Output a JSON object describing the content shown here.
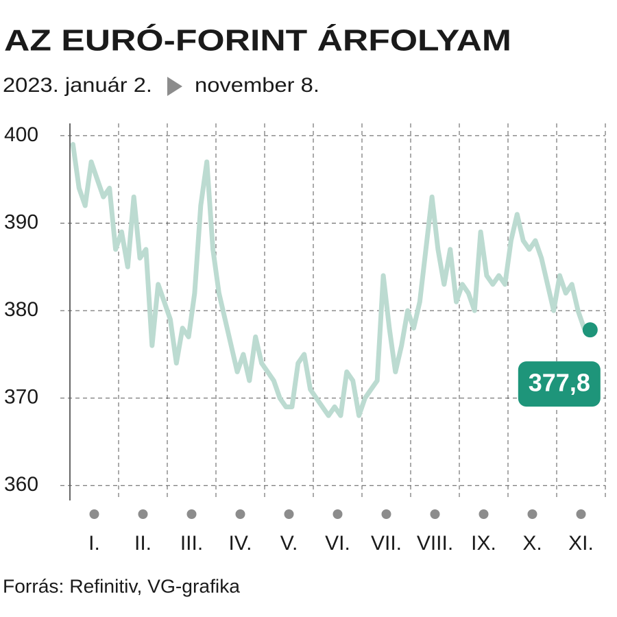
{
  "chart_data": {
    "type": "line",
    "title": "AZ EURÓ-FORINT ÁRFOLYAM",
    "subtitle_start": "2023. január 2.",
    "subtitle_end": "november 8.",
    "source": "Forrás: Refinitiv, VG-grafika",
    "categories": [
      null,
      null,
      null,
      null,
      "I.",
      null,
      null,
      null,
      null,
      null,
      null,
      null,
      "II.",
      null,
      null,
      null,
      null,
      null,
      null,
      null,
      "III.",
      null,
      null,
      null,
      null,
      null,
      null,
      null,
      "IV.",
      null,
      null,
      null,
      null,
      null,
      null,
      null,
      "V.",
      null,
      null,
      null,
      null,
      null,
      null,
      null,
      "VI.",
      null,
      null,
      null,
      null,
      null,
      null,
      null,
      "VII.",
      null,
      null,
      null,
      null,
      null,
      null,
      null,
      "VIII.",
      null,
      null,
      null,
      null,
      null,
      null,
      null,
      "IX.",
      null,
      null,
      null,
      null,
      null,
      null,
      null,
      "X.",
      null,
      null,
      null,
      null,
      null,
      null,
      null,
      "XI.",
      null
    ],
    "series": [
      {
        "color": "#bcdbd1",
        "end_color": "#1e957a",
        "values": [
          399,
          394,
          392,
          397,
          395,
          393,
          394,
          387,
          389,
          385,
          393,
          386,
          387,
          376,
          383,
          381,
          379,
          374,
          378,
          377,
          382,
          392,
          397,
          387,
          382,
          379,
          376,
          373,
          375,
          372,
          377,
          374,
          373,
          372,
          370,
          369,
          369,
          374,
          375,
          371,
          370,
          369,
          368,
          369,
          368,
          373,
          372,
          368,
          370,
          371,
          372,
          384,
          378,
          373,
          376,
          380,
          378,
          381,
          387,
          393,
          387,
          383,
          387,
          381,
          383,
          382,
          380,
          389,
          384,
          383,
          384,
          383,
          388,
          391,
          388,
          387,
          388,
          386,
          383,
          380,
          384,
          382,
          383,
          380,
          378,
          377.8
        ],
        "value_labels": [
          null,
          null,
          null,
          null,
          null,
          null,
          null,
          null,
          null,
          null,
          null,
          null,
          null,
          null,
          null,
          null,
          null,
          null,
          null,
          null,
          null,
          null,
          null,
          null,
          null,
          null,
          null,
          null,
          null,
          null,
          null,
          null,
          null,
          null,
          null,
          null,
          null,
          null,
          null,
          null,
          null,
          null,
          null,
          null,
          null,
          null,
          null,
          null,
          null,
          null,
          null,
          null,
          null,
          null,
          null,
          null,
          null,
          null,
          null,
          null,
          null,
          null,
          null,
          null,
          null,
          null,
          null,
          null,
          null,
          null,
          null,
          null,
          null,
          null,
          null,
          null,
          null,
          null,
          null,
          null,
          null,
          null,
          null,
          null,
          null,
          "377,8"
        ]
      }
    ],
    "ylim": [
      358.3,
      401.4
    ],
    "yticks": [
      360,
      370,
      380,
      390,
      400
    ],
    "grid": true
  }
}
